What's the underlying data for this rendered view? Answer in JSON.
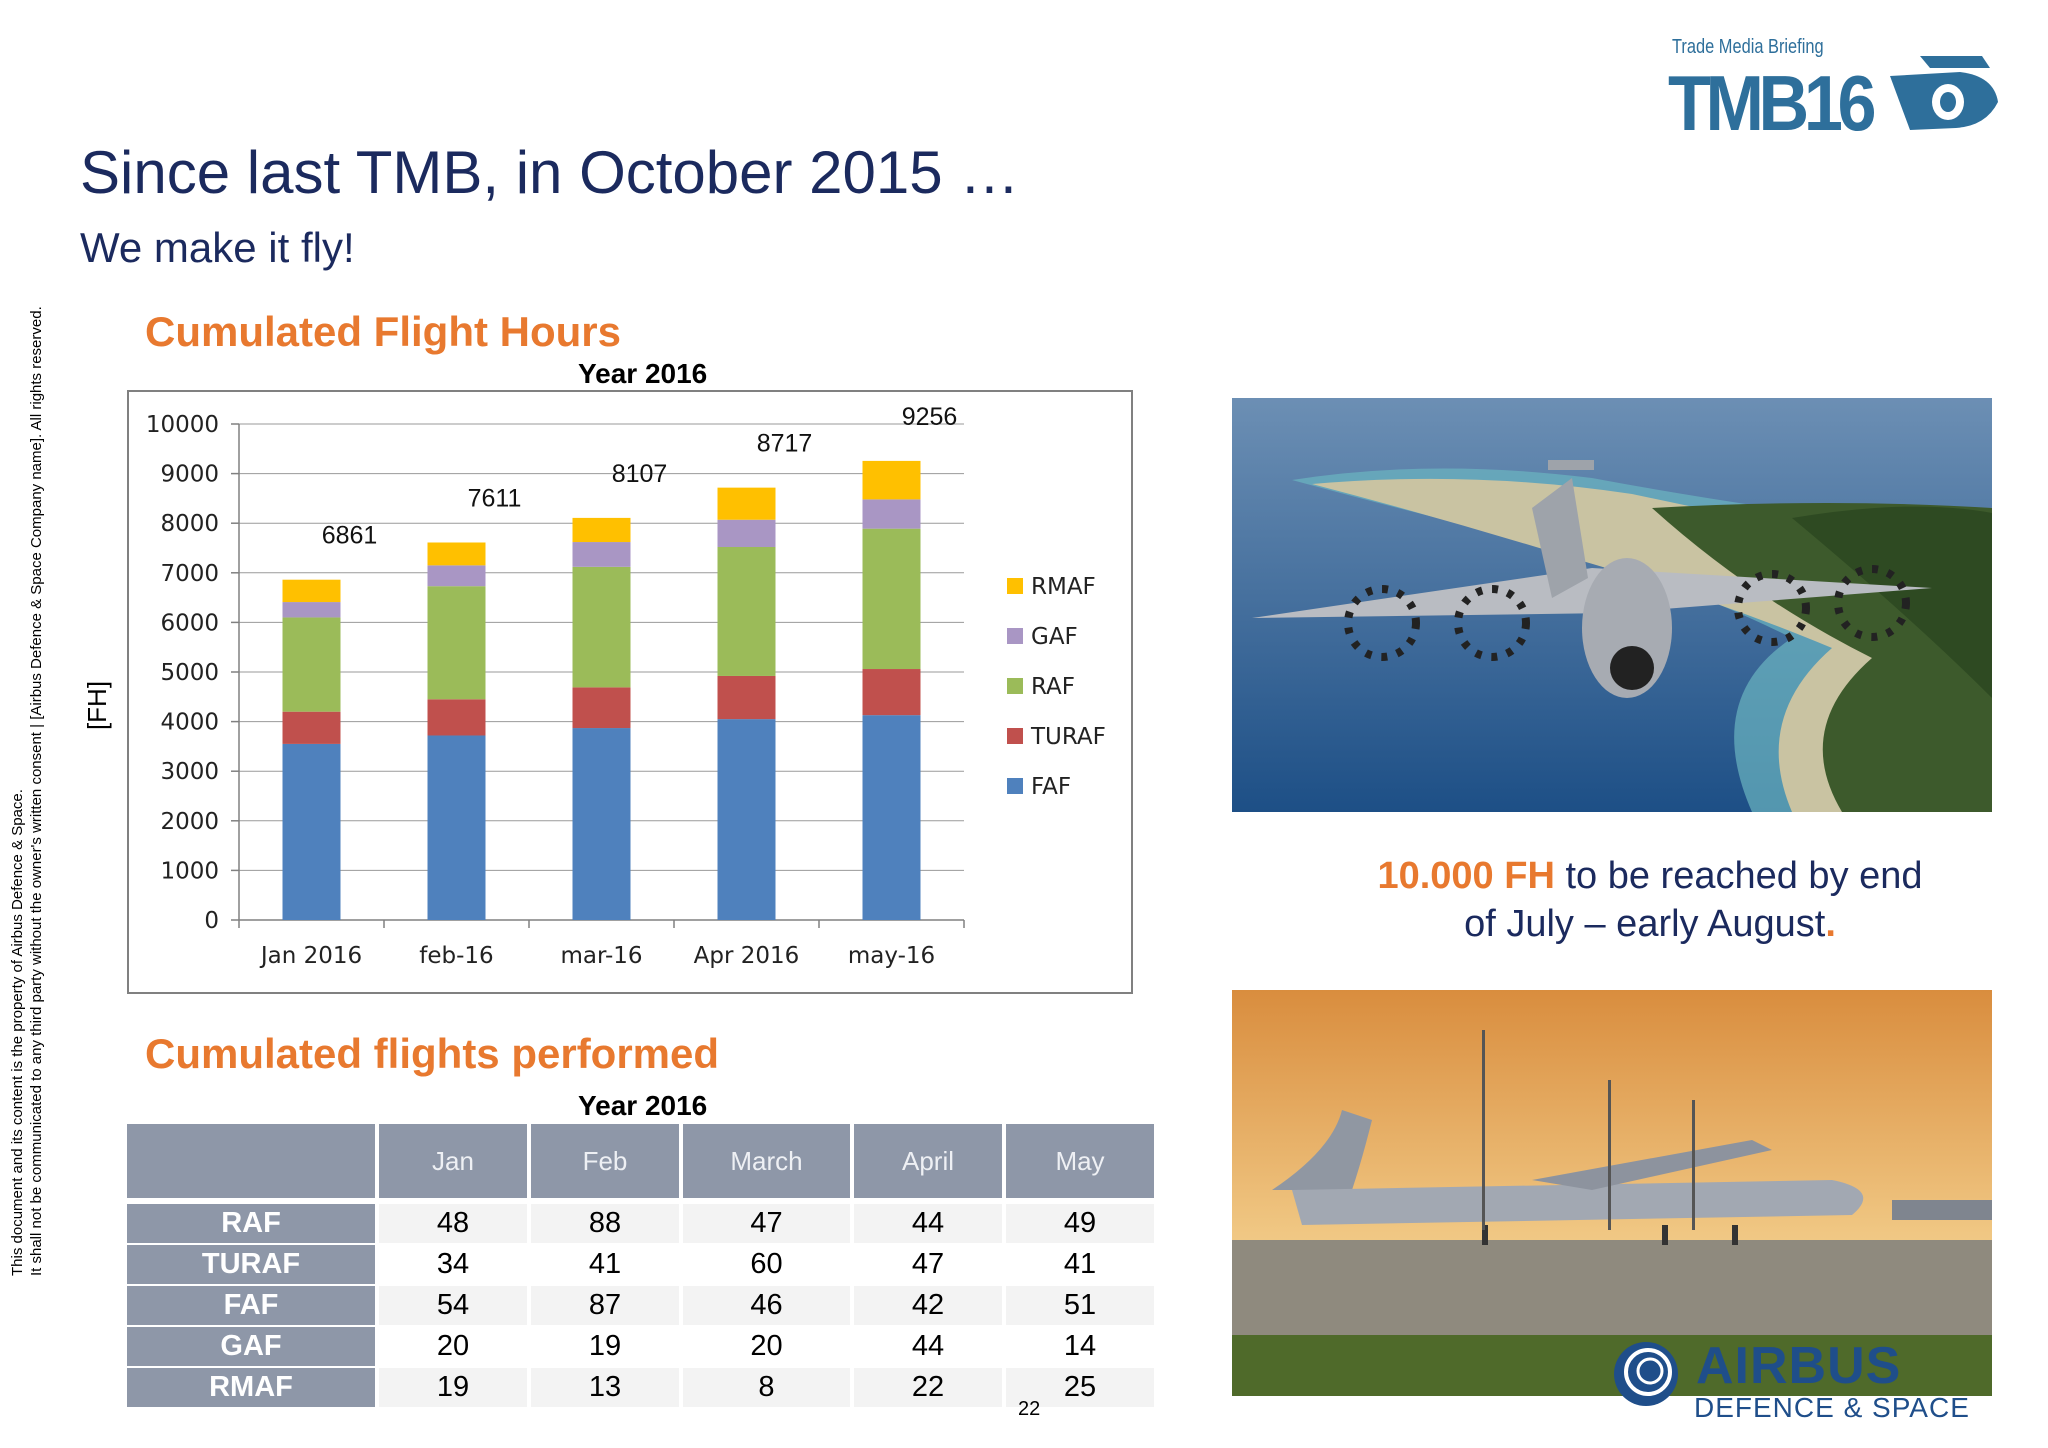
{
  "header": {
    "title": "Since last TMB, in October 2015 …",
    "subtitle": "We make it fly!"
  },
  "logo_tmb": {
    "tagline": "Trade Media Briefing",
    "text": "TMB16"
  },
  "side_note": {
    "line1": "This document and its content is the property of Airbus Defence & Space.",
    "line2": "It shall not be communicated to any third party without the owner's written consent | [Airbus Defence & Space Company name]. All rights reserved."
  },
  "section_hours": {
    "heading": "Cumulated Flight Hours",
    "year_title": "Year 2016"
  },
  "section_flights": {
    "heading": "Cumulated flights performed",
    "year_title": "Year 2016"
  },
  "chart_data": {
    "type": "bar",
    "stacked": true,
    "title": "Year 2016",
    "ylabel": "[FH]",
    "xlabel": "",
    "categories": [
      "Jan 2016",
      "feb-16",
      "mar-16",
      "Apr 2016",
      "may-16"
    ],
    "ylim": [
      0,
      10000
    ],
    "yticks": [
      0,
      1000,
      2000,
      3000,
      4000,
      5000,
      6000,
      7000,
      8000,
      9000,
      10000
    ],
    "totals": [
      6861,
      7611,
      8107,
      8717,
      9256
    ],
    "series": [
      {
        "name": "FAF",
        "color": "#4f81bd",
        "values": [
          3550,
          3720,
          3870,
          4050,
          4130
        ]
      },
      {
        "name": "TURAF",
        "color": "#c0504d",
        "values": [
          650,
          730,
          820,
          870,
          930
        ]
      },
      {
        "name": "RAF",
        "color": "#9bbb59",
        "values": [
          1900,
          2280,
          2430,
          2600,
          2830
        ]
      },
      {
        "name": "GAF",
        "color": "#a996c4",
        "values": [
          310,
          420,
          500,
          550,
          590
        ]
      },
      {
        "name": "RMAF",
        "color": "#ffc000",
        "values": [
          451,
          461,
          487,
          647,
          776
        ]
      }
    ],
    "legend_order": [
      "RMAF",
      "GAF",
      "RAF",
      "TURAF",
      "FAF"
    ],
    "legend_position": "right",
    "grid": true
  },
  "flights_table": {
    "columns": [
      "Jan",
      "Feb",
      "March",
      "April",
      "May"
    ],
    "rows": [
      {
        "label": "RAF",
        "values": [
          "48",
          "88",
          "47",
          "44",
          "49"
        ]
      },
      {
        "label": "TURAF",
        "values": [
          "34",
          "41",
          "60",
          "47",
          "41"
        ]
      },
      {
        "label": "FAF",
        "values": [
          "54",
          "87",
          "46",
          "42",
          "51"
        ]
      },
      {
        "label": "GAF",
        "values": [
          "20",
          "19",
          "20",
          "44",
          "14"
        ]
      },
      {
        "label": "RMAF",
        "values": [
          "19",
          "13",
          "8",
          "22",
          "25"
        ]
      }
    ]
  },
  "note": {
    "highlight": "10.000 FH",
    "text1": " to be reached by end",
    "text2": "of July – early August",
    "dot": "."
  },
  "logo_airbus": {
    "line1": "AIRBUS",
    "line2": "DEFENCE & SPACE"
  },
  "page_number": "22",
  "colors": {
    "title": "#1b2a5e",
    "accent_orange": "#e8792f",
    "tmb_blue": "#2e6f9b",
    "table_header": "#8e97a8"
  }
}
